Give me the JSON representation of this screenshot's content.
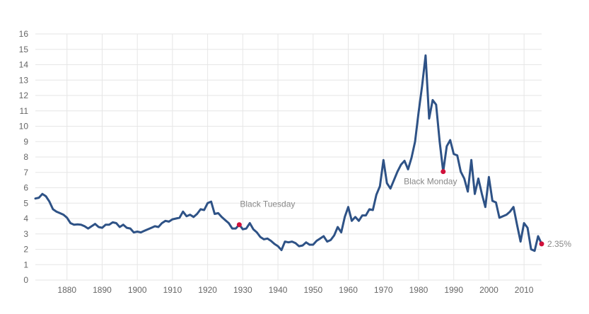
{
  "chart_data": {
    "type": "line",
    "title": "",
    "xlabel": "",
    "ylabel": "",
    "xlim": [
      1871,
      2015
    ],
    "ylim": [
      0,
      16
    ],
    "x_ticks": [
      "1880",
      "1890",
      "1900",
      "1910",
      "1920",
      "1930",
      "1940",
      "1950",
      "1960",
      "1970",
      "1980",
      "1990",
      "2000",
      "2010"
    ],
    "y_ticks": [
      "0",
      "1",
      "2",
      "3",
      "4",
      "5",
      "6",
      "7",
      "8",
      "9",
      "10",
      "11",
      "12",
      "13",
      "14",
      "15",
      "16"
    ],
    "grid": true,
    "legend": "none",
    "line_color": "#2e5286",
    "marker_color": "#d0103a",
    "series": [
      {
        "values": [
          [
            1871,
            5.3
          ],
          [
            1872,
            5.35
          ],
          [
            1873,
            5.6
          ],
          [
            1874,
            5.45
          ],
          [
            1875,
            5.1
          ],
          [
            1876,
            4.6
          ],
          [
            1877,
            4.45
          ],
          [
            1878,
            4.35
          ],
          [
            1879,
            4.25
          ],
          [
            1880,
            4.05
          ],
          [
            1881,
            3.7
          ],
          [
            1882,
            3.6
          ],
          [
            1883,
            3.62
          ],
          [
            1884,
            3.6
          ],
          [
            1885,
            3.5
          ],
          [
            1886,
            3.35
          ],
          [
            1887,
            3.5
          ],
          [
            1888,
            3.65
          ],
          [
            1889,
            3.45
          ],
          [
            1890,
            3.4
          ],
          [
            1891,
            3.6
          ],
          [
            1892,
            3.6
          ],
          [
            1893,
            3.75
          ],
          [
            1894,
            3.7
          ],
          [
            1895,
            3.45
          ],
          [
            1896,
            3.6
          ],
          [
            1897,
            3.4
          ],
          [
            1898,
            3.35
          ],
          [
            1899,
            3.1
          ],
          [
            1900,
            3.15
          ],
          [
            1901,
            3.1
          ],
          [
            1902,
            3.2
          ],
          [
            1903,
            3.3
          ],
          [
            1904,
            3.4
          ],
          [
            1905,
            3.5
          ],
          [
            1906,
            3.45
          ],
          [
            1907,
            3.7
          ],
          [
            1908,
            3.85
          ],
          [
            1909,
            3.8
          ],
          [
            1910,
            3.95
          ],
          [
            1911,
            4.0
          ],
          [
            1912,
            4.05
          ],
          [
            1913,
            4.45
          ],
          [
            1914,
            4.15
          ],
          [
            1915,
            4.25
          ],
          [
            1916,
            4.1
          ],
          [
            1917,
            4.3
          ],
          [
            1918,
            4.6
          ],
          [
            1919,
            4.55
          ],
          [
            1920,
            5.0
          ],
          [
            1921,
            5.1
          ],
          [
            1922,
            4.3
          ],
          [
            1923,
            4.35
          ],
          [
            1924,
            4.1
          ],
          [
            1925,
            3.9
          ],
          [
            1926,
            3.7
          ],
          [
            1927,
            3.35
          ],
          [
            1928,
            3.35
          ],
          [
            1929,
            3.6
          ],
          [
            1930,
            3.3
          ],
          [
            1931,
            3.35
          ],
          [
            1932,
            3.7
          ],
          [
            1933,
            3.3
          ],
          [
            1934,
            3.1
          ],
          [
            1935,
            2.8
          ],
          [
            1936,
            2.65
          ],
          [
            1937,
            2.7
          ],
          [
            1938,
            2.55
          ],
          [
            1939,
            2.35
          ],
          [
            1940,
            2.2
          ],
          [
            1941,
            1.95
          ],
          [
            1942,
            2.5
          ],
          [
            1943,
            2.45
          ],
          [
            1944,
            2.5
          ],
          [
            1945,
            2.4
          ],
          [
            1946,
            2.2
          ],
          [
            1947,
            2.25
          ],
          [
            1948,
            2.45
          ],
          [
            1949,
            2.3
          ],
          [
            1950,
            2.3
          ],
          [
            1951,
            2.55
          ],
          [
            1952,
            2.7
          ],
          [
            1953,
            2.85
          ],
          [
            1954,
            2.5
          ],
          [
            1955,
            2.6
          ],
          [
            1956,
            2.9
          ],
          [
            1957,
            3.45
          ],
          [
            1958,
            3.1
          ],
          [
            1959,
            4.1
          ],
          [
            1960,
            4.75
          ],
          [
            1961,
            3.85
          ],
          [
            1962,
            4.1
          ],
          [
            1963,
            3.85
          ],
          [
            1964,
            4.2
          ],
          [
            1965,
            4.2
          ],
          [
            1966,
            4.6
          ],
          [
            1967,
            4.55
          ],
          [
            1968,
            5.55
          ],
          [
            1969,
            6.1
          ],
          [
            1970,
            7.8
          ],
          [
            1971,
            6.3
          ],
          [
            1972,
            5.95
          ],
          [
            1973,
            6.5
          ],
          [
            1974,
            7.05
          ],
          [
            1975,
            7.5
          ],
          [
            1976,
            7.75
          ],
          [
            1977,
            7.2
          ],
          [
            1978,
            7.95
          ],
          [
            1979,
            9.0
          ],
          [
            1980,
            10.9
          ],
          [
            1981,
            12.6
          ],
          [
            1982,
            14.6
          ],
          [
            1983,
            10.5
          ],
          [
            1984,
            11.7
          ],
          [
            1985,
            11.4
          ],
          [
            1986,
            9.0
          ],
          [
            1987,
            7.05
          ],
          [
            1988,
            8.7
          ],
          [
            1989,
            9.1
          ],
          [
            1990,
            8.2
          ],
          [
            1991,
            8.1
          ],
          [
            1992,
            7.05
          ],
          [
            1993,
            6.6
          ],
          [
            1994,
            5.75
          ],
          [
            1995,
            7.8
          ],
          [
            1996,
            5.6
          ],
          [
            1997,
            6.6
          ],
          [
            1998,
            5.6
          ],
          [
            1999,
            4.75
          ],
          [
            2000,
            6.7
          ],
          [
            2001,
            5.15
          ],
          [
            2002,
            5.05
          ],
          [
            2003,
            4.05
          ],
          [
            2004,
            4.15
          ],
          [
            2005,
            4.25
          ],
          [
            2006,
            4.45
          ],
          [
            2007,
            4.75
          ],
          [
            2008,
            3.6
          ],
          [
            2009,
            2.5
          ],
          [
            2010,
            3.7
          ],
          [
            2011,
            3.4
          ],
          [
            2012,
            2.0
          ],
          [
            2013,
            1.9
          ],
          [
            2014,
            2.85
          ],
          [
            2015,
            2.35
          ]
        ]
      }
    ],
    "annotations": [
      {
        "x": 1929,
        "y": 3.6,
        "label": "Black Tuesday",
        "position": "above"
      },
      {
        "x": 1987,
        "y": 7.05,
        "label": "Black Monday",
        "position": "below-left"
      },
      {
        "x": 2015,
        "y": 2.35,
        "label": "2.35%",
        "position": "right"
      }
    ]
  }
}
